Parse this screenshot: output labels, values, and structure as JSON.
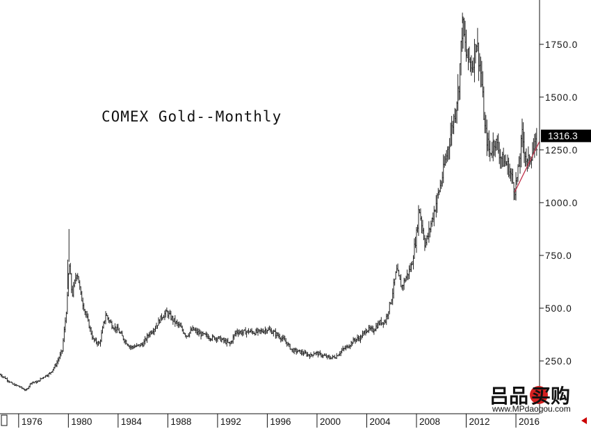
{
  "chart_data": {
    "type": "ohlc-bar",
    "title": "COMEX Gold--Monthly",
    "xlabel": "",
    "ylabel": "",
    "xlim": [
      1974.5,
      2017.9
    ],
    "ylim": [
      0,
      1960
    ],
    "y_scale": "linear",
    "y_axis_position": "right",
    "grid": false,
    "yticks": [
      250,
      500,
      750,
      1000,
      1250,
      1500,
      1750
    ],
    "ytick_labels": [
      "250.0",
      "500.0",
      "750.0",
      "1000.0",
      "1250.0",
      "1500.0",
      "1750.0"
    ],
    "xticks": [
      1976,
      1980,
      1984,
      1988,
      1992,
      1996,
      2000,
      2004,
      2008,
      2012,
      2016
    ],
    "xtick_labels": [
      "1976",
      "1980",
      "1984",
      "1988",
      "1992",
      "1996",
      "2000",
      "2004",
      "2008",
      "2012",
      "2016"
    ],
    "last_price": 1316.3,
    "last_price_label": "1316.3",
    "series": [
      {
        "style": "monthly price bars",
        "color": "#222222",
        "x": [
          1974.5,
          1975.0,
          1975.5,
          1976.0,
          1976.6,
          1977.0,
          1977.5,
          1978.0,
          1978.5,
          1979.0,
          1979.5,
          1979.9,
          1980.05,
          1980.3,
          1980.7,
          1981.0,
          1981.5,
          1982.0,
          1982.5,
          1983.0,
          1983.5,
          1984.0,
          1984.5,
          1985.0,
          1985.5,
          1986.0,
          1986.5,
          1987.0,
          1987.5,
          1987.9,
          1988.5,
          1989.0,
          1989.5,
          1990.0,
          1990.5,
          1991.0,
          1991.5,
          1992.0,
          1992.5,
          1993.0,
          1993.5,
          1994.0,
          1994.5,
          1995.0,
          1995.5,
          1996.0,
          1996.5,
          1997.0,
          1997.5,
          1998.0,
          1998.5,
          1999.0,
          1999.5,
          1999.8,
          2000.5,
          2001.0,
          2001.5,
          2002.0,
          2002.5,
          2003.0,
          2003.5,
          2004.0,
          2004.5,
          2005.0,
          2005.5,
          2006.0,
          2006.4,
          2006.8,
          2007.2,
          2007.6,
          2008.0,
          2008.2,
          2008.7,
          2009.0,
          2009.5,
          2010.0,
          2010.5,
          2011.0,
          2011.4,
          2011.7,
          2012.0,
          2012.5,
          2012.8,
          2013.2,
          2013.5,
          2013.9,
          2014.3,
          2014.6,
          2014.9,
          2015.3,
          2015.6,
          2015.9,
          2016.2,
          2016.5,
          2016.9,
          2017.3,
          2017.7
        ],
        "close": [
          186,
          165,
          140,
          130,
          110,
          148,
          150,
          175,
          190,
          233,
          300,
          525,
          720,
          560,
          680,
          560,
          450,
          350,
          330,
          470,
          420,
          395,
          350,
          315,
          320,
          330,
          380,
          410,
          460,
          480,
          440,
          410,
          370,
          400,
          380,
          370,
          360,
          360,
          345,
          330,
          390,
          385,
          390,
          385,
          390,
          400,
          385,
          365,
          340,
          300,
          295,
          285,
          275,
          290,
          275,
          265,
          270,
          300,
          320,
          350,
          360,
          400,
          395,
          430,
          440,
          550,
          680,
          600,
          650,
          700,
          850,
          980,
          800,
          860,
          980,
          1100,
          1250,
          1400,
          1550,
          1850,
          1700,
          1650,
          1780,
          1600,
          1350,
          1230,
          1300,
          1250,
          1200,
          1180,
          1130,
          1060,
          1150,
          1320,
          1180,
          1240,
          1280
        ]
      }
    ]
  },
  "trendline": {
    "from": {
      "x": 2015.9,
      "y": 1050
    },
    "to": {
      "x": 2017.9,
      "y": 1290
    },
    "color": "#c0304a"
  },
  "colors": {
    "background": "#ffffff",
    "bars": "#222222",
    "axis": "#111111",
    "last_price_bg": "#000000",
    "last_price_text": "#ffffff",
    "right_arrow": "#cc0000"
  },
  "watermark": {
    "brand": "买购",
    "url": "www.MPdaogou.com"
  }
}
